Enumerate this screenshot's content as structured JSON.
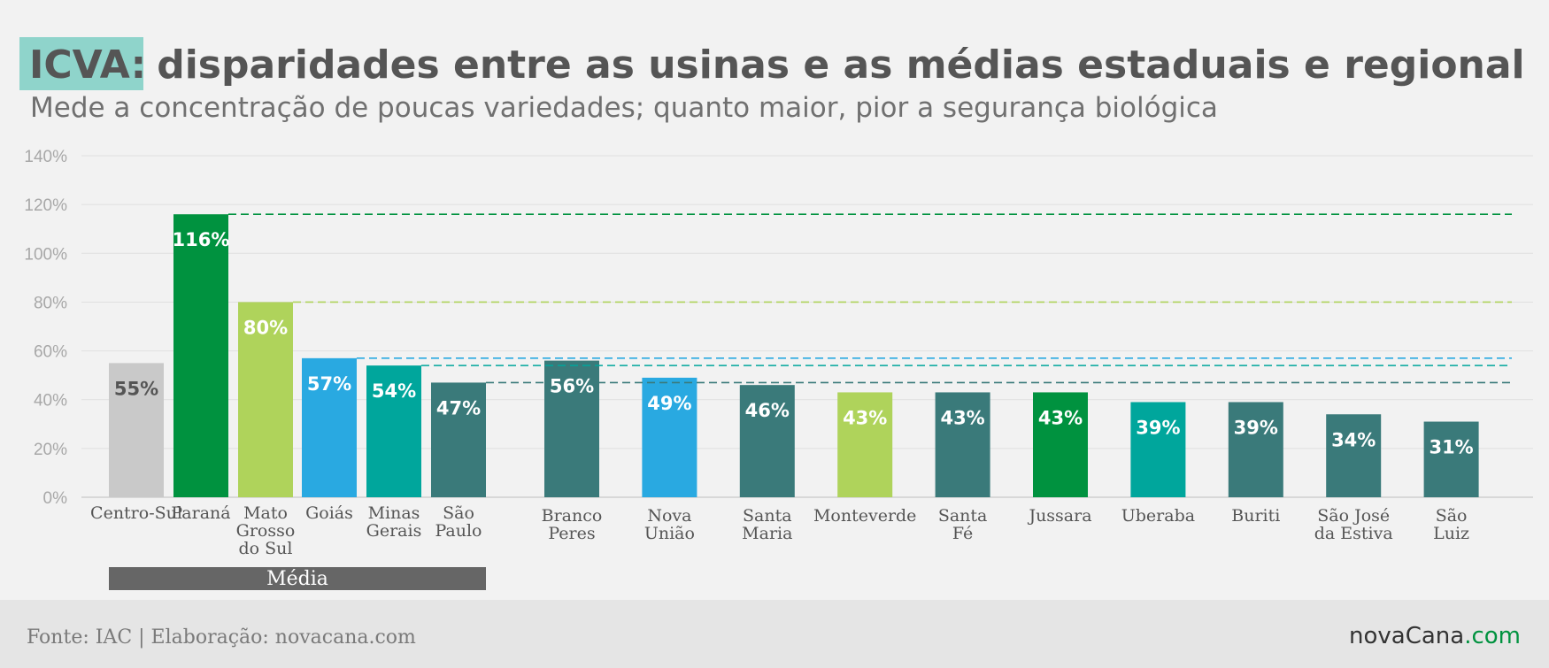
{
  "header": {
    "title_highlight": "ICVA:",
    "title_rest": "disparidades entre as usinas e as médias estaduais e regional",
    "subtitle": "Mede a concentração de poucas variedades; quanto maior, pior a segurança biológica"
  },
  "chart_data": {
    "type": "bar",
    "y_unit": "%",
    "ylim": [
      0,
      140
    ],
    "yticks": [
      "0%",
      "20%",
      "40%",
      "60%",
      "80%",
      "100%",
      "120%",
      "140%"
    ],
    "grid": true,
    "categories": [
      {
        "lines": [
          "Centro-Sul"
        ],
        "value": 55,
        "label": "55%",
        "color": "#c9c9c9",
        "label_color": "#555555",
        "group": "media"
      },
      {
        "lines": [
          "Paraná"
        ],
        "value": 116,
        "label": "116%",
        "color": "#00923f",
        "label_color": "#ffffff",
        "group": "media"
      },
      {
        "lines": [
          "Mato",
          "Grosso",
          "do Sul"
        ],
        "value": 80,
        "label": "80%",
        "color": "#afd35b",
        "label_color": "#ffffff",
        "group": "media"
      },
      {
        "lines": [
          "Goiás"
        ],
        "value": 57,
        "label": "57%",
        "color": "#29a9e1",
        "label_color": "#ffffff",
        "group": "media"
      },
      {
        "lines": [
          "Minas",
          "Gerais"
        ],
        "value": 54,
        "label": "54%",
        "color": "#00a69c",
        "label_color": "#ffffff",
        "group": "media"
      },
      {
        "lines": [
          "São",
          "Paulo"
        ],
        "value": 47,
        "label": "47%",
        "color": "#3a7a7a",
        "label_color": "#ffffff",
        "group": "media"
      },
      {
        "lines": [
          "Branco",
          "Peres"
        ],
        "value": 56,
        "label": "56%",
        "color": "#3a7a7a",
        "label_color": "#ffffff",
        "group": "usina"
      },
      {
        "lines": [
          "Nova",
          "União"
        ],
        "value": 49,
        "label": "49%",
        "color": "#29a9e1",
        "label_color": "#ffffff",
        "group": "usina"
      },
      {
        "lines": [
          "Santa",
          "Maria"
        ],
        "value": 46,
        "label": "46%",
        "color": "#3a7a7a",
        "label_color": "#ffffff",
        "group": "usina"
      },
      {
        "lines": [
          "Monteverde"
        ],
        "value": 43,
        "label": "43%",
        "color": "#afd35b",
        "label_color": "#ffffff",
        "group": "usina"
      },
      {
        "lines": [
          "Santa",
          "Fé"
        ],
        "value": 43,
        "label": "43%",
        "color": "#3a7a7a",
        "label_color": "#ffffff",
        "group": "usina"
      },
      {
        "lines": [
          "Jussara"
        ],
        "value": 43,
        "label": "43%",
        "color": "#00923f",
        "label_color": "#ffffff",
        "group": "usina"
      },
      {
        "lines": [
          "Uberaba"
        ],
        "value": 39,
        "label": "39%",
        "color": "#00a69c",
        "label_color": "#ffffff",
        "group": "usina"
      },
      {
        "lines": [
          "Buriti"
        ],
        "value": 39,
        "label": "39%",
        "color": "#3a7a7a",
        "label_color": "#ffffff",
        "group": "usina"
      },
      {
        "lines": [
          "São José",
          "da Estiva"
        ],
        "value": 34,
        "label": "34%",
        "color": "#3a7a7a",
        "label_color": "#ffffff",
        "group": "usina"
      },
      {
        "lines": [
          "São",
          "Luiz"
        ],
        "value": 31,
        "label": "31%",
        "color": "#3a7a7a",
        "label_color": "#ffffff",
        "group": "usina"
      }
    ],
    "reference_lines": [
      {
        "value": 116,
        "color": "#00923f"
      },
      {
        "value": 80,
        "color": "#afd35b"
      },
      {
        "value": 57,
        "color": "#29a9e1"
      },
      {
        "value": 54,
        "color": "#00a69c"
      },
      {
        "value": 47,
        "color": "#3a7a7a"
      }
    ],
    "group_label": "Média"
  },
  "footer": {
    "source": "Fonte: IAC | Elaboração: novacana.com",
    "logo_main": "novaCana",
    "logo_suffix": ".com"
  }
}
